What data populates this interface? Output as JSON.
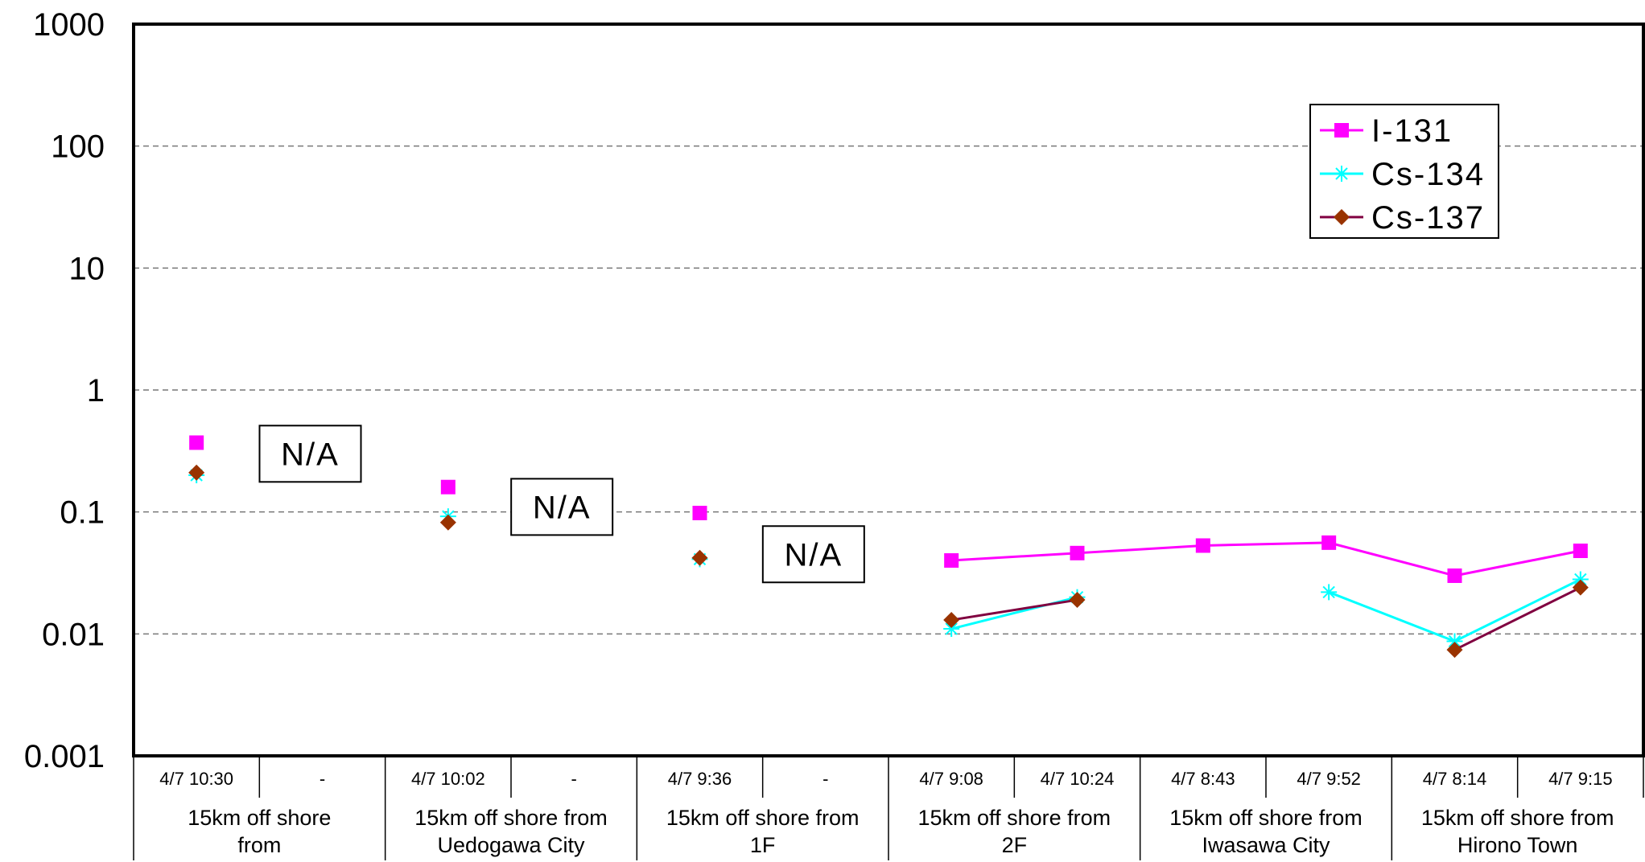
{
  "chart_data": {
    "type": "line",
    "title": "",
    "xlabel": "",
    "ylabel": "",
    "yscale": "log",
    "ylim": [
      0.001,
      1000
    ],
    "y_ticks": [
      "1000",
      "100",
      "10",
      "1",
      "0.1",
      "0.01",
      "0.001"
    ],
    "grid": "horizontal dashed",
    "legend_position": "top-right",
    "categories": [
      "4/7 10:30",
      "-",
      "4/7 10:02",
      "-",
      "4/7 9:36",
      "-",
      "4/7 9:08",
      "4/7 10:24",
      "4/7 8:43",
      "4/7 9:52",
      "4/7 8:14",
      "4/7 9:15"
    ],
    "groups": [
      {
        "line1": "15km off shore",
        "line2": "from",
        "span": [
          0,
          1
        ]
      },
      {
        "line1": "15km off shore from",
        "line2": "Uedogawa City",
        "span": [
          2,
          3
        ]
      },
      {
        "line1": "15km off shore from",
        "line2": "1F",
        "span": [
          4,
          5
        ]
      },
      {
        "line1": "15km off shore from",
        "line2": "2F",
        "span": [
          6,
          7
        ]
      },
      {
        "line1": "15km off shore from",
        "line2": "Iwasawa City",
        "span": [
          8,
          9
        ]
      },
      {
        "line1": "15km off shore from",
        "line2": "Hirono Town",
        "span": [
          10,
          11
        ]
      }
    ],
    "series": [
      {
        "name": "I-131",
        "color": "#ff00ff",
        "marker": "square",
        "values": [
          0.37,
          null,
          0.16,
          null,
          0.098,
          null,
          0.04,
          0.046,
          0.053,
          0.056,
          0.03,
          0.048
        ]
      },
      {
        "name": "Cs-134",
        "color": "#00ffff",
        "marker": "asterisk",
        "values": [
          0.2,
          null,
          0.092,
          null,
          0.041,
          null,
          0.011,
          0.02,
          null,
          0.022,
          0.0087,
          0.028
        ]
      },
      {
        "name": "Cs-137",
        "color": "#800040",
        "marker_color": "#993300",
        "marker": "diamond",
        "values": [
          0.21,
          null,
          0.082,
          null,
          0.042,
          null,
          0.013,
          0.019,
          null,
          null,
          0.0074,
          0.024
        ]
      }
    ],
    "annotations": [
      {
        "text": "N/A",
        "category": 1,
        "y": 0.3
      },
      {
        "text": "N/A",
        "category": 3,
        "y": 0.11
      },
      {
        "text": "N/A",
        "category": 5,
        "y": 0.045
      }
    ]
  }
}
